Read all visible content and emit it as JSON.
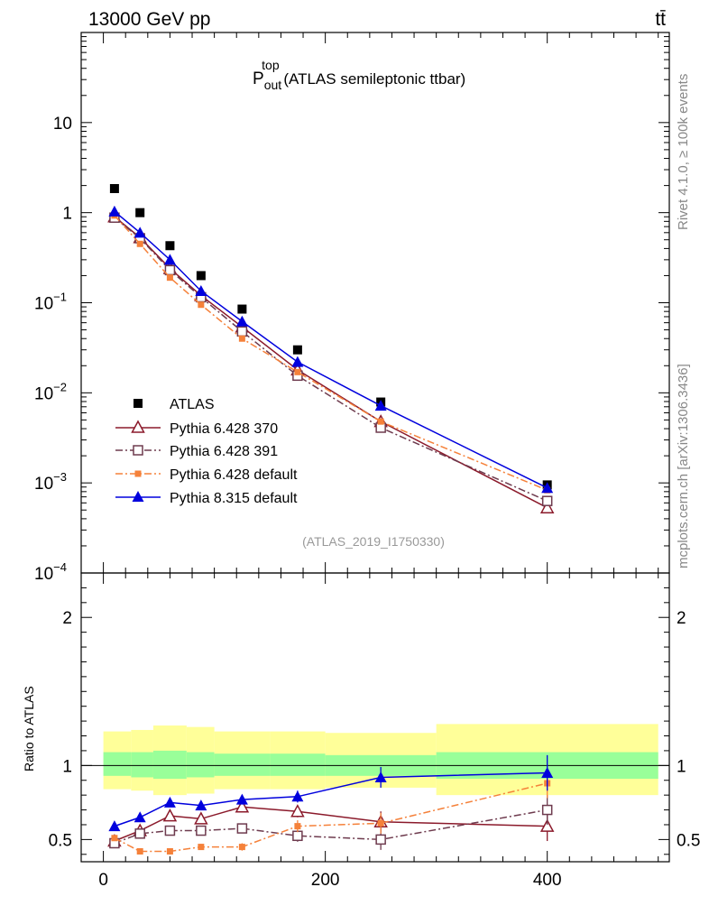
{
  "header": {
    "left": "13000 GeV pp",
    "right": "tt̄"
  },
  "title": {
    "main": "P",
    "sup": "top",
    "sub": "out",
    "rest": " (ATLAS semileptonic ttbar)"
  },
  "side_labels": {
    "rivet": "Rivet 4.1.0, ≥ 100k events",
    "mcplots": "mcplots.cern.ch [arXiv:1306.3436]"
  },
  "analysis_id": "(ATLAS_2019_I1750330)",
  "colors": {
    "data": "#000000",
    "p370": "#8b1a2b",
    "p391": "#6e3b4e",
    "p6def": "#f5813a",
    "p8": "#0000dd",
    "band_inner": "#99ff99",
    "band_outer": "#ffff99"
  },
  "chart_data": [
    {
      "type": "scatter",
      "name": "main",
      "yscale": "log",
      "xlim": [
        -20,
        510
      ],
      "ylim": [
        0.0001,
        100
      ],
      "y_ticks": [
        {
          "v": 10,
          "label": "10"
        },
        {
          "v": 1,
          "label": "1"
        },
        {
          "v": 0.1,
          "label": "10",
          "exp": "−1"
        },
        {
          "v": 0.01,
          "label": "10",
          "exp": "−2"
        },
        {
          "v": 0.001,
          "label": "10",
          "exp": "−3"
        },
        {
          "v": 0.0001,
          "label": "10",
          "exp": "−4"
        }
      ],
      "x": [
        10,
        33,
        60,
        88,
        125,
        175,
        250,
        400
      ],
      "series": [
        {
          "name": "ATLAS",
          "key": "data",
          "marker": "square-filled",
          "values": [
            1.85,
            1.0,
            0.43,
            0.2,
            0.085,
            0.03,
            0.0079,
            0.00095
          ]
        },
        {
          "name": "Pythia 6.428 370",
          "key": "p370",
          "marker": "triangle-open",
          "line": "solid",
          "values": [
            0.9,
            0.53,
            0.24,
            0.12,
            0.054,
            0.018,
            0.0048,
            0.00053
          ]
        },
        {
          "name": "Pythia 6.428 391",
          "key": "p391",
          "marker": "square-open",
          "line": "dashdot",
          "values": [
            0.88,
            0.52,
            0.23,
            0.115,
            0.048,
            0.0155,
            0.0041,
            0.00063
          ]
        },
        {
          "name": "Pythia 6.428 default",
          "key": "p6def",
          "marker": "square-small",
          "line": "dashdot",
          "values": [
            0.93,
            0.45,
            0.19,
            0.095,
            0.04,
            0.017,
            0.0048,
            0.00083
          ]
        },
        {
          "name": "Pythia 8.315 default",
          "key": "p8",
          "marker": "triangle-filled",
          "line": "solid",
          "values": [
            1.03,
            0.6,
            0.3,
            0.135,
            0.062,
            0.022,
            0.0072,
            0.00088
          ]
        }
      ]
    },
    {
      "type": "line",
      "name": "ratio",
      "ylabel": "Ratio to ATLAS",
      "xlim": [
        -20,
        510
      ],
      "ylim": [
        0.35,
        2.3
      ],
      "y_ticks": [
        {
          "v": 2,
          "label": "2"
        },
        {
          "v": 1,
          "label": "1"
        },
        {
          "v": 0.5,
          "label": "0.5"
        }
      ],
      "x_ticks": [
        {
          "v": 0,
          "label": "0"
        },
        {
          "v": 200,
          "label": "200"
        },
        {
          "v": 400,
          "label": "400"
        }
      ],
      "x": [
        10,
        33,
        60,
        88,
        125,
        175,
        250,
        400
      ],
      "bands": [
        {
          "x0": 0,
          "x1": 25,
          "inner": [
            0.93,
            1.09
          ],
          "outer": [
            0.84,
            1.23
          ]
        },
        {
          "x0": 25,
          "x1": 45,
          "inner": [
            0.92,
            1.09
          ],
          "outer": [
            0.83,
            1.24
          ]
        },
        {
          "x0": 45,
          "x1": 75,
          "inner": [
            0.91,
            1.1
          ],
          "outer": [
            0.8,
            1.27
          ]
        },
        {
          "x0": 75,
          "x1": 100,
          "inner": [
            0.92,
            1.09
          ],
          "outer": [
            0.81,
            1.26
          ]
        },
        {
          "x0": 100,
          "x1": 150,
          "inner": [
            0.93,
            1.08
          ],
          "outer": [
            0.84,
            1.23
          ]
        },
        {
          "x0": 150,
          "x1": 200,
          "inner": [
            0.93,
            1.08
          ],
          "outer": [
            0.84,
            1.23
          ]
        },
        {
          "x0": 200,
          "x1": 300,
          "inner": [
            0.93,
            1.07
          ],
          "outer": [
            0.85,
            1.22
          ]
        },
        {
          "x0": 300,
          "x1": 500,
          "inner": [
            0.91,
            1.09
          ],
          "outer": [
            0.8,
            1.28
          ]
        }
      ],
      "series": [
        {
          "name": "Pythia 6.428 370",
          "key": "p370",
          "marker": "triangle-open",
          "line": "solid",
          "values": [
            0.49,
            0.56,
            0.66,
            0.64,
            0.72,
            0.69,
            0.62,
            0.59
          ],
          "err": [
            0.015,
            0.015,
            0.015,
            0.02,
            0.025,
            0.04,
            0.07,
            0.1
          ]
        },
        {
          "name": "Pythia 6.428 391",
          "key": "p391",
          "marker": "square-open",
          "line": "dashdot",
          "values": [
            0.475,
            0.54,
            0.56,
            0.56,
            0.575,
            0.525,
            0.5,
            0.7
          ],
          "err": [
            0.015,
            0.015,
            0.015,
            0.02,
            0.025,
            0.04,
            0.07,
            0.1
          ]
        },
        {
          "name": "Pythia 6.428 default",
          "key": "p6def",
          "marker": "square-small",
          "line": "dashdot",
          "values": [
            0.51,
            0.42,
            0.42,
            0.45,
            0.45,
            0.59,
            0.61,
            0.88
          ],
          "err": [
            0.015,
            0.015,
            0.015,
            0.02,
            0.025,
            0.04,
            0.07,
            0.1
          ]
        },
        {
          "name": "Pythia 8.315 default",
          "key": "p8",
          "marker": "triangle-filled",
          "line": "solid",
          "values": [
            0.59,
            0.65,
            0.75,
            0.73,
            0.77,
            0.79,
            0.92,
            0.95
          ],
          "err": [
            0.015,
            0.015,
            0.015,
            0.02,
            0.025,
            0.04,
            0.07,
            0.12
          ]
        }
      ]
    }
  ]
}
